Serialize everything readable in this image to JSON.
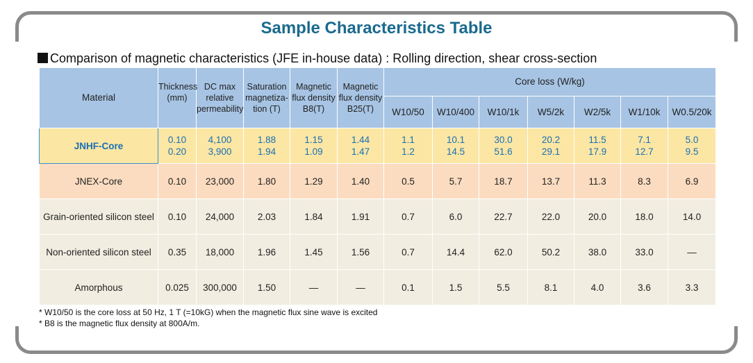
{
  "title": "Sample Characteristics Table",
  "subtitle": "Comparison of magnetic characteristics (JFE in-house data) : Rolling direction, shear cross-section",
  "headers": {
    "material": "Material",
    "thickness": [
      "Thickness",
      "(mm)"
    ],
    "dcmax": [
      "DC max",
      "relative",
      "permeability"
    ],
    "saturation": [
      "Saturation",
      "magnetiza-",
      "tion (T)"
    ],
    "b8": [
      "Magnetic",
      "flux density",
      "B8(T)"
    ],
    "b25": [
      "Magnetic",
      "flux density",
      "B25(T)"
    ],
    "coreloss": "Core loss (W/kg)",
    "core_cols": [
      "W10/50",
      "W10/400",
      "W10/1k",
      "W5/2k",
      "W2/5k",
      "W1/10k",
      "W0.5/20k"
    ]
  },
  "rows": [
    {
      "material": "JNHF-Core",
      "thickness": [
        "0.10",
        "0.20"
      ],
      "dcmax": [
        "4,100",
        "3,900"
      ],
      "saturation": [
        "1.88",
        "1.94"
      ],
      "b8": [
        "1.15",
        "1.09"
      ],
      "b25": [
        "1.44",
        "1.47"
      ],
      "w10_50": [
        "1.1",
        "1.2"
      ],
      "w10_400": [
        "10.1",
        "14.5"
      ],
      "w10_1k": [
        "30.0",
        "51.6"
      ],
      "w5_2k": [
        "20.2",
        "29.1"
      ],
      "w2_5k": [
        "11.5",
        "17.9"
      ],
      "w1_10k": [
        "7.1",
        "12.7"
      ],
      "w05_20k": [
        "5.0",
        "9.5"
      ]
    },
    {
      "material": "JNEX-Core",
      "thickness": "0.10",
      "dcmax": "23,000",
      "saturation": "1.80",
      "b8": "1.29",
      "b25": "1.40",
      "w10_50": "0.5",
      "w10_400": "5.7",
      "w10_1k": "18.7",
      "w5_2k": "13.7",
      "w2_5k": "11.3",
      "w1_10k": "8.3",
      "w05_20k": "6.9"
    },
    {
      "material": "Grain-oriented silicon steel",
      "thickness": "0.10",
      "dcmax": "24,000",
      "saturation": "2.03",
      "b8": "1.84",
      "b25": "1.91",
      "w10_50": "0.7",
      "w10_400": "6.0",
      "w10_1k": "22.7",
      "w5_2k": "22.0",
      "w2_5k": "20.0",
      "w1_10k": "18.0",
      "w05_20k": "14.0"
    },
    {
      "material": "Non-oriented silicon steel",
      "thickness": "0.35",
      "dcmax": "18,000",
      "saturation": "1.96",
      "b8": "1.45",
      "b25": "1.56",
      "w10_50": "0.7",
      "w10_400": "14.4",
      "w10_1k": "62.0",
      "w5_2k": "50.2",
      "w2_5k": "38.0",
      "w1_10k": "33.0",
      "w05_20k": "—"
    },
    {
      "material": "Amorphous",
      "thickness": "0.025",
      "dcmax": "300,000",
      "saturation": "1.50",
      "b8": "—",
      "b25": "—",
      "w10_50": "0.1",
      "w10_400": "1.5",
      "w10_1k": "5.5",
      "w5_2k": "8.1",
      "w2_5k": "4.0",
      "w1_10k": "3.6",
      "w05_20k": "3.3"
    }
  ],
  "footnotes": [
    "* W10/50 is the core loss at 50 Hz, 1 T (=10kG) when the magnetic flux sine wave is excited",
    "* B8 is the magnetic flux density at 800A/m."
  ],
  "colors": {
    "title": "#1a6a8e",
    "header_bg": "#a7c4e4",
    "jnhf_bg": "#fbe6a3",
    "jnhf_text": "#1a6fb5",
    "jnex_bg": "#fbdcc0",
    "other_bg": "#f1ede0",
    "frame": "#8a8a8a"
  }
}
